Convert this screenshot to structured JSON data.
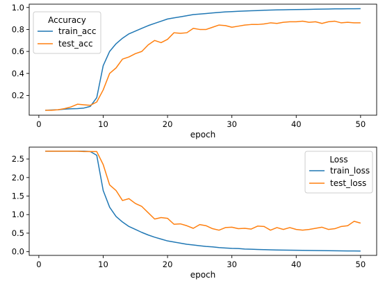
{
  "chart_data": [
    {
      "type": "line",
      "title": "",
      "xlabel": "epoch",
      "ylabel": "",
      "xlim": [
        -1.5,
        52.5
      ],
      "ylim": [
        0.02,
        1.03
      ],
      "xticks": [
        0,
        10,
        20,
        30,
        40,
        50
      ],
      "yticks": [
        0.2,
        0.4,
        0.6,
        0.8,
        1.0
      ],
      "ytick_labels": [
        "0.2",
        "0.4",
        "0.6",
        "0.8",
        "1.0"
      ],
      "grid": false,
      "legend": {
        "title": "Accuracy",
        "placement": "top-left"
      },
      "x": [
        1,
        2,
        3,
        4,
        5,
        6,
        7,
        8,
        9,
        10,
        11,
        12,
        13,
        14,
        15,
        16,
        17,
        18,
        19,
        20,
        21,
        22,
        23,
        24,
        25,
        26,
        27,
        28,
        29,
        30,
        31,
        32,
        33,
        34,
        35,
        36,
        37,
        38,
        39,
        40,
        41,
        42,
        43,
        44,
        45,
        46,
        47,
        48,
        49,
        50
      ],
      "series": [
        {
          "name": "train_acc",
          "color": "#1f77b4",
          "values": [
            0.065,
            0.067,
            0.07,
            0.075,
            0.078,
            0.08,
            0.085,
            0.1,
            0.18,
            0.47,
            0.6,
            0.67,
            0.72,
            0.76,
            0.785,
            0.81,
            0.835,
            0.855,
            0.875,
            0.895,
            0.905,
            0.915,
            0.925,
            0.935,
            0.94,
            0.945,
            0.95,
            0.955,
            0.96,
            0.962,
            0.965,
            0.968,
            0.97,
            0.972,
            0.975,
            0.976,
            0.978,
            0.979,
            0.98,
            0.981,
            0.982,
            0.983,
            0.984,
            0.985,
            0.986,
            0.987,
            0.987,
            0.988,
            0.988,
            0.989
          ]
        },
        {
          "name": "test_acc",
          "color": "#ff7f0e",
          "values": [
            0.065,
            0.065,
            0.07,
            0.08,
            0.095,
            0.12,
            0.115,
            0.11,
            0.14,
            0.25,
            0.4,
            0.45,
            0.53,
            0.55,
            0.58,
            0.6,
            0.66,
            0.7,
            0.68,
            0.71,
            0.77,
            0.765,
            0.77,
            0.81,
            0.8,
            0.8,
            0.82,
            0.84,
            0.835,
            0.82,
            0.83,
            0.84,
            0.845,
            0.845,
            0.85,
            0.86,
            0.855,
            0.865,
            0.87,
            0.87,
            0.875,
            0.865,
            0.87,
            0.855,
            0.87,
            0.875,
            0.86,
            0.865,
            0.86,
            0.86
          ]
        }
      ]
    },
    {
      "type": "line",
      "title": "",
      "xlabel": "epoch",
      "ylabel": "",
      "xlim": [
        -1.5,
        52.5
      ],
      "ylim": [
        -0.1,
        2.82
      ],
      "xticks": [
        0,
        10,
        20,
        30,
        40,
        50
      ],
      "yticks": [
        0.0,
        0.5,
        1.0,
        1.5,
        2.0,
        2.5
      ],
      "ytick_labels": [
        "0.0",
        "0.5",
        "1.0",
        "1.5",
        "2.0",
        "2.5"
      ],
      "grid": false,
      "legend": {
        "title": "Loss",
        "placement": "top-right"
      },
      "x": [
        1,
        2,
        3,
        4,
        5,
        6,
        7,
        8,
        9,
        10,
        11,
        12,
        13,
        14,
        15,
        16,
        17,
        18,
        19,
        20,
        21,
        22,
        23,
        24,
        25,
        26,
        27,
        28,
        29,
        30,
        31,
        32,
        33,
        34,
        35,
        36,
        37,
        38,
        39,
        40,
        41,
        42,
        43,
        44,
        45,
        46,
        47,
        48,
        49,
        50
      ],
      "series": [
        {
          "name": "train_loss",
          "color": "#1f77b4",
          "values": [
            2.71,
            2.71,
            2.71,
            2.71,
            2.71,
            2.71,
            2.71,
            2.7,
            2.6,
            1.65,
            1.2,
            0.95,
            0.8,
            0.68,
            0.6,
            0.52,
            0.45,
            0.39,
            0.34,
            0.29,
            0.26,
            0.23,
            0.2,
            0.18,
            0.16,
            0.14,
            0.13,
            0.11,
            0.1,
            0.09,
            0.085,
            0.07,
            0.065,
            0.06,
            0.055,
            0.05,
            0.045,
            0.042,
            0.04,
            0.038,
            0.035,
            0.033,
            0.03,
            0.028,
            0.026,
            0.025,
            0.022,
            0.02,
            0.02,
            0.018
          ]
        },
        {
          "name": "test_loss",
          "color": "#ff7f0e",
          "values": [
            2.71,
            2.71,
            2.71,
            2.71,
            2.71,
            2.71,
            2.7,
            2.7,
            2.7,
            2.35,
            1.8,
            1.65,
            1.38,
            1.43,
            1.3,
            1.22,
            1.05,
            0.88,
            0.92,
            0.9,
            0.74,
            0.75,
            0.7,
            0.63,
            0.73,
            0.7,
            0.62,
            0.58,
            0.65,
            0.66,
            0.62,
            0.63,
            0.61,
            0.69,
            0.68,
            0.58,
            0.65,
            0.6,
            0.65,
            0.6,
            0.58,
            0.6,
            0.63,
            0.66,
            0.6,
            0.62,
            0.68,
            0.7,
            0.82,
            0.77
          ]
        }
      ]
    }
  ]
}
